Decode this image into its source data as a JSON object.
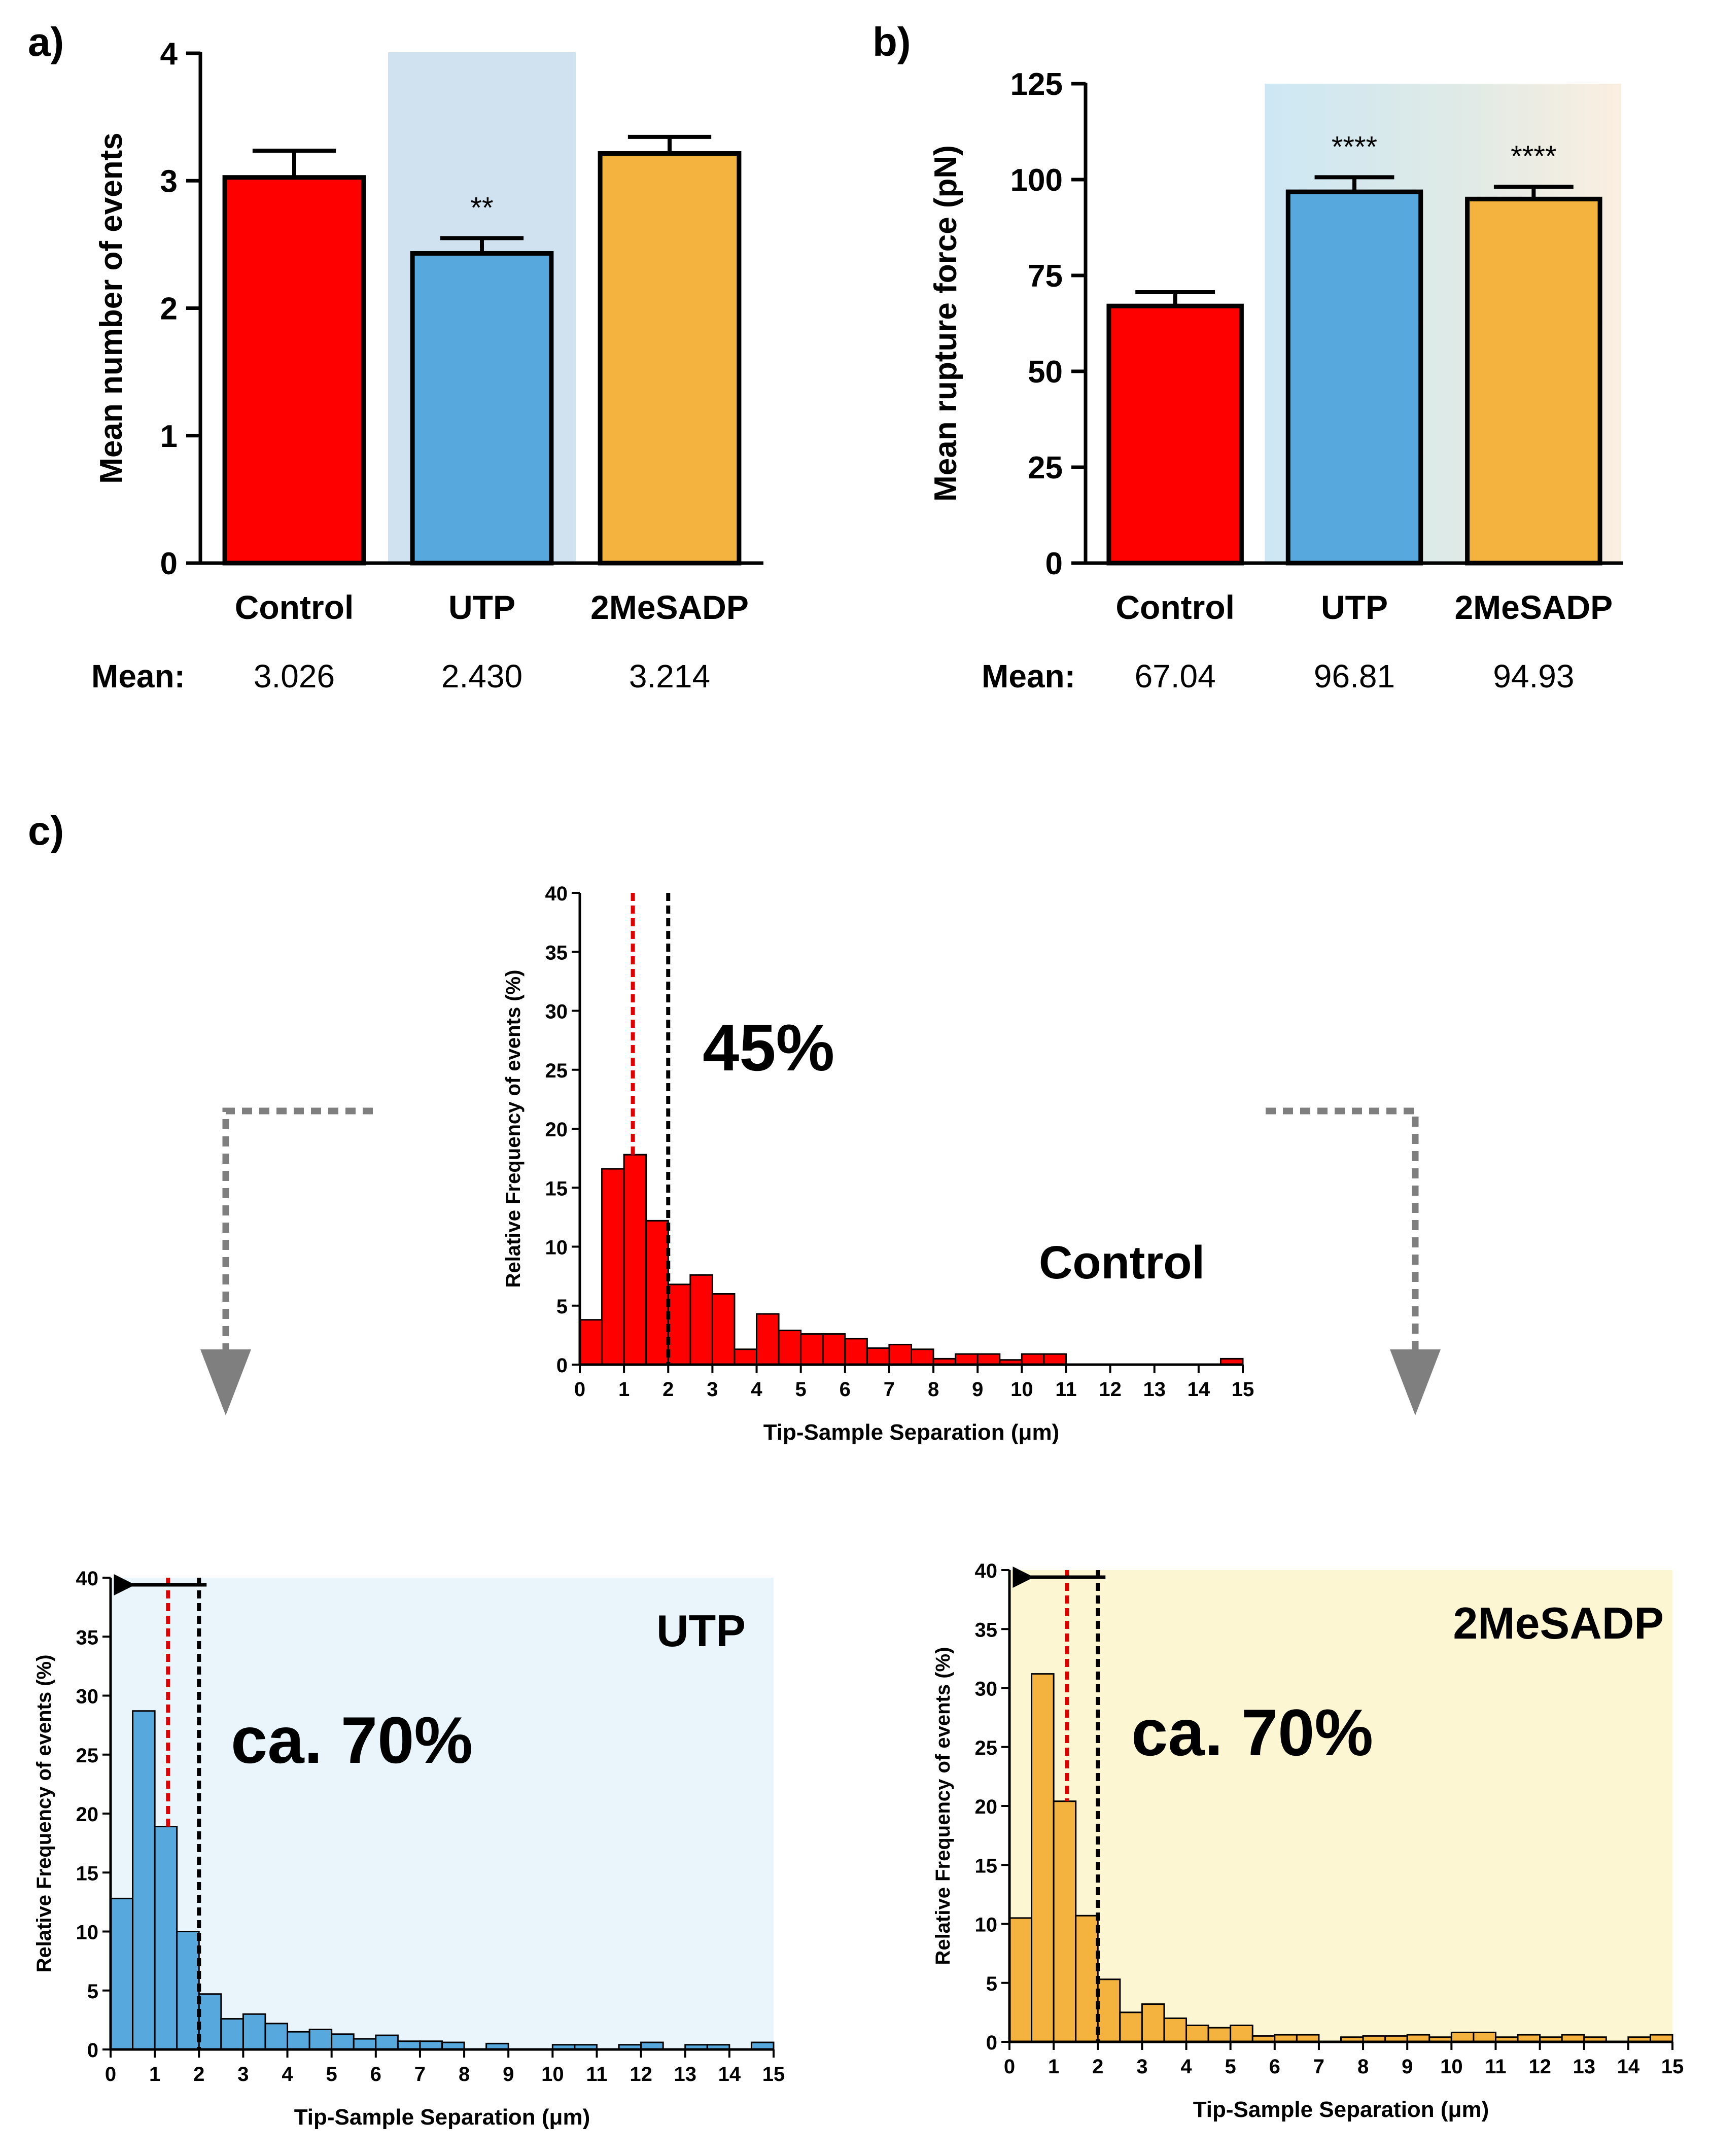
{
  "panel_labels": {
    "a": "a)",
    "b": "b)",
    "c": "c)"
  },
  "chart_data": [
    {
      "id": "a",
      "type": "bar",
      "ylabel": "Mean number of events",
      "ylim": [
        0,
        4
      ],
      "yticks": [
        0,
        1,
        2,
        3,
        4
      ],
      "categories": [
        "Control",
        "UTP",
        "2MeSADP"
      ],
      "values": [
        3.026,
        2.43,
        3.214
      ],
      "errors": [
        0.21,
        0.12,
        0.13
      ],
      "colors": [
        "#ff0000",
        "#56a8dd",
        "#f4b23e"
      ],
      "significance": [
        "",
        "**",
        ""
      ],
      "mean_label": "Mean:",
      "mean_values": [
        "3.026",
        "2.430",
        "3.214"
      ],
      "highlight": {
        "category": "UTP",
        "color": "#d0e2ef"
      }
    },
    {
      "id": "b",
      "type": "bar",
      "ylabel": "Mean rupture force (pN)",
      "ylim": [
        0,
        125
      ],
      "yticks": [
        0,
        25,
        50,
        75,
        100,
        125
      ],
      "categories": [
        "Control",
        "UTP",
        "2MeSADP"
      ],
      "values": [
        67.04,
        96.81,
        94.93
      ],
      "errors": [
        3.6,
        3.8,
        3.2
      ],
      "colors": [
        "#ff0000",
        "#56a8dd",
        "#f4b23e"
      ],
      "significance": [
        "",
        "****",
        "****"
      ],
      "mean_label": "Mean:",
      "mean_values": [
        "67.04",
        "96.81",
        "94.93"
      ],
      "highlight": {
        "categories": [
          "UTP",
          "2MeSADP"
        ],
        "gradient": [
          "#cde7f4",
          "#fbefe0"
        ]
      }
    },
    {
      "id": "c-control",
      "type": "histogram",
      "title": "Control",
      "xlabel": "Tip-Sample Separation (μm)",
      "ylabel": "Relative Frequency of events (%)",
      "xlim": [
        0,
        15
      ],
      "ylim": [
        0,
        40
      ],
      "xticks": [
        0,
        1,
        2,
        3,
        4,
        5,
        6,
        7,
        8,
        9,
        10,
        11,
        12,
        13,
        14,
        15
      ],
      "yticks": [
        0,
        5,
        10,
        15,
        20,
        25,
        30,
        35,
        40
      ],
      "bin_width": 0.5,
      "values": [
        3.8,
        16.6,
        17.8,
        12.2,
        6.8,
        7.6,
        6.0,
        1.3,
        4.3,
        2.9,
        2.6,
        2.6,
        2.2,
        1.4,
        1.7,
        1.3,
        0.5,
        0.9,
        0.9,
        0.4,
        0.9,
        0.9,
        0,
        0,
        0,
        0,
        0,
        0,
        0,
        0.5
      ],
      "color": "#ff0000",
      "red_line_x": 1.2,
      "black_line_x": 2.0,
      "annotation": "45%"
    },
    {
      "id": "c-utp",
      "type": "histogram",
      "title": "UTP",
      "xlabel": "Tip-Sample Separation (μm)",
      "ylabel": "Relative Frequency of events (%)",
      "xlim": [
        0,
        15
      ],
      "ylim": [
        0,
        40
      ],
      "xticks": [
        0,
        1,
        2,
        3,
        4,
        5,
        6,
        7,
        8,
        9,
        10,
        11,
        12,
        13,
        14,
        15
      ],
      "yticks": [
        0,
        5,
        10,
        15,
        20,
        25,
        30,
        35,
        40
      ],
      "bin_width": 0.5,
      "values": [
        12.8,
        28.7,
        18.9,
        10.0,
        4.7,
        2.6,
        3.0,
        2.2,
        1.5,
        1.7,
        1.3,
        0.9,
        1.2,
        0.7,
        0.7,
        0.6,
        0,
        0.5,
        0,
        0,
        0.4,
        0.4,
        0,
        0.4,
        0.6,
        0,
        0.4,
        0.4,
        0,
        0.6
      ],
      "color": "#56a8dd",
      "background": "#e9f4fb",
      "red_line_x": 1.3,
      "black_line_x": 2.0,
      "annotation": "ca. 70%"
    },
    {
      "id": "c-2mesadp",
      "type": "histogram",
      "title": "2MeSADP",
      "xlabel": "Tip-Sample Separation (μm)",
      "ylabel": "Relative Frequency of events (%)",
      "xlim": [
        0,
        15
      ],
      "ylim": [
        0,
        40
      ],
      "xticks": [
        0,
        1,
        2,
        3,
        4,
        5,
        6,
        7,
        8,
        9,
        10,
        11,
        12,
        13,
        14,
        15
      ],
      "yticks": [
        0,
        5,
        10,
        15,
        20,
        25,
        30,
        35,
        40
      ],
      "bin_width": 0.5,
      "values": [
        10.5,
        31.2,
        20.4,
        10.7,
        5.3,
        2.5,
        3.2,
        2.0,
        1.4,
        1.2,
        1.4,
        0.5,
        0.6,
        0.6,
        0,
        0.4,
        0.5,
        0.5,
        0.6,
        0.4,
        0.8,
        0.8,
        0.4,
        0.6,
        0.4,
        0.6,
        0.4,
        0,
        0.4,
        0.6
      ],
      "color": "#f4b23e",
      "background": "#fdf6d3",
      "red_line_x": 1.3,
      "black_line_x": 2.0,
      "annotation": "ca. 70%"
    }
  ]
}
